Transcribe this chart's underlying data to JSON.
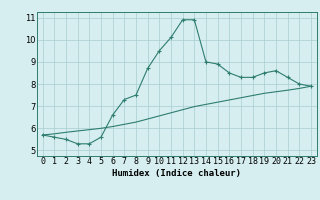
{
  "x": [
    0,
    1,
    2,
    3,
    4,
    5,
    6,
    7,
    8,
    9,
    10,
    11,
    12,
    13,
    14,
    15,
    16,
    17,
    18,
    19,
    20,
    21,
    22,
    23
  ],
  "y_curve": [
    5.7,
    5.6,
    5.5,
    5.3,
    5.3,
    5.6,
    6.6,
    7.3,
    7.5,
    8.7,
    9.5,
    10.1,
    10.9,
    10.9,
    9.0,
    8.9,
    8.5,
    8.3,
    8.3,
    8.5,
    8.6,
    8.3,
    8.0,
    7.9
  ],
  "y_line": [
    5.7,
    5.75,
    5.82,
    5.88,
    5.94,
    6.0,
    6.08,
    6.18,
    6.28,
    6.42,
    6.56,
    6.7,
    6.84,
    6.98,
    7.08,
    7.18,
    7.28,
    7.38,
    7.48,
    7.58,
    7.65,
    7.72,
    7.8,
    7.9
  ],
  "color": "#2e7d6e",
  "bg_color": "#d6eef0",
  "grid_color": "#a8cdd0",
  "xlabel": "Humidex (Indice chaleur)",
  "xlim": [
    -0.5,
    23.5
  ],
  "ylim": [
    4.75,
    11.25
  ],
  "yticks": [
    5,
    6,
    7,
    8,
    9,
    10,
    11
  ],
  "xtick_labels": [
    "0",
    "1",
    "2",
    "3",
    "4",
    "5",
    "6",
    "7",
    "8",
    "9",
    "10",
    "11",
    "12",
    "13",
    "14",
    "15",
    "16",
    "17",
    "18",
    "19",
    "20",
    "21",
    "22",
    "23"
  ]
}
